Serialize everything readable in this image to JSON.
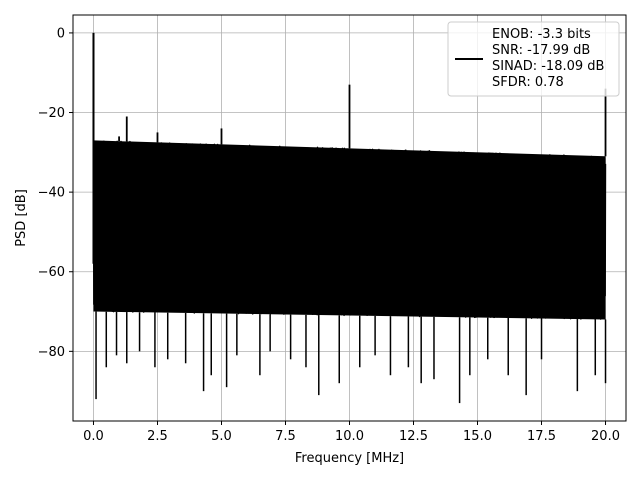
{
  "chart_data": {
    "type": "line",
    "title": "",
    "xlabel": "Frequency [MHz]",
    "ylabel": "PSD [dB]",
    "xlim": [
      -0.8,
      20.8
    ],
    "ylim": [
      -97.5,
      4.5
    ],
    "grid": true,
    "legend_position": "top-right",
    "x_ticks": [
      {
        "value": 0.0,
        "label": "0.0"
      },
      {
        "value": 2.5,
        "label": "2.5"
      },
      {
        "value": 5.0,
        "label": "5.0"
      },
      {
        "value": 7.5,
        "label": "7.5"
      },
      {
        "value": 10.0,
        "label": "10.0"
      },
      {
        "value": 12.5,
        "label": "12.5"
      },
      {
        "value": 15.0,
        "label": "15.0"
      },
      {
        "value": 17.5,
        "label": "17.5"
      },
      {
        "value": 20.0,
        "label": "20.0"
      }
    ],
    "y_ticks": [
      {
        "value": 0,
        "label": "0"
      },
      {
        "value": -20,
        "label": "−20"
      },
      {
        "value": -40,
        "label": "−40"
      },
      {
        "value": -60,
        "label": "−60"
      },
      {
        "value": -80,
        "label": "−80"
      }
    ],
    "legend_lines": [
      "ENOB: -3.3 bits",
      "SNR: -17.99 dB",
      "SINAD: -18.09 dB",
      "SFDR: 0.78"
    ],
    "series": [
      {
        "color": "#000000",
        "x_range": [
          0,
          20
        ],
        "noise_top_start": -27,
        "noise_top_end": -31,
        "noise_bottom_start": -70,
        "noise_bottom_end": -72,
        "dips": [
          [
            0.1,
            -92
          ],
          [
            0.5,
            -84
          ],
          [
            0.9,
            -81
          ],
          [
            1.3,
            -83
          ],
          [
            1.8,
            -80
          ],
          [
            2.4,
            -84
          ],
          [
            2.9,
            -82
          ],
          [
            3.6,
            -83
          ],
          [
            4.3,
            -90
          ],
          [
            4.6,
            -86
          ],
          [
            5.2,
            -89
          ],
          [
            5.6,
            -81
          ],
          [
            6.5,
            -86
          ],
          [
            6.9,
            -80
          ],
          [
            7.7,
            -82
          ],
          [
            8.3,
            -84
          ],
          [
            8.8,
            -91
          ],
          [
            9.6,
            -88
          ],
          [
            10.4,
            -84
          ],
          [
            11.0,
            -81
          ],
          [
            11.6,
            -86
          ],
          [
            12.3,
            -84
          ],
          [
            12.8,
            -88
          ],
          [
            13.3,
            -87
          ],
          [
            14.3,
            -93
          ],
          [
            14.7,
            -86
          ],
          [
            15.4,
            -82
          ],
          [
            16.2,
            -86
          ],
          [
            16.9,
            -91
          ],
          [
            17.5,
            -82
          ],
          [
            18.9,
            -90
          ],
          [
            19.6,
            -86
          ],
          [
            20.0,
            -88
          ]
        ],
        "peaks": [
          [
            0.0,
            0
          ],
          [
            0.4,
            -28
          ],
          [
            1.0,
            -26
          ],
          [
            1.3,
            -21
          ],
          [
            2.5,
            -25
          ],
          [
            5.0,
            -24
          ],
          [
            10.0,
            -13
          ],
          [
            20.0,
            -14
          ]
        ]
      }
    ]
  }
}
